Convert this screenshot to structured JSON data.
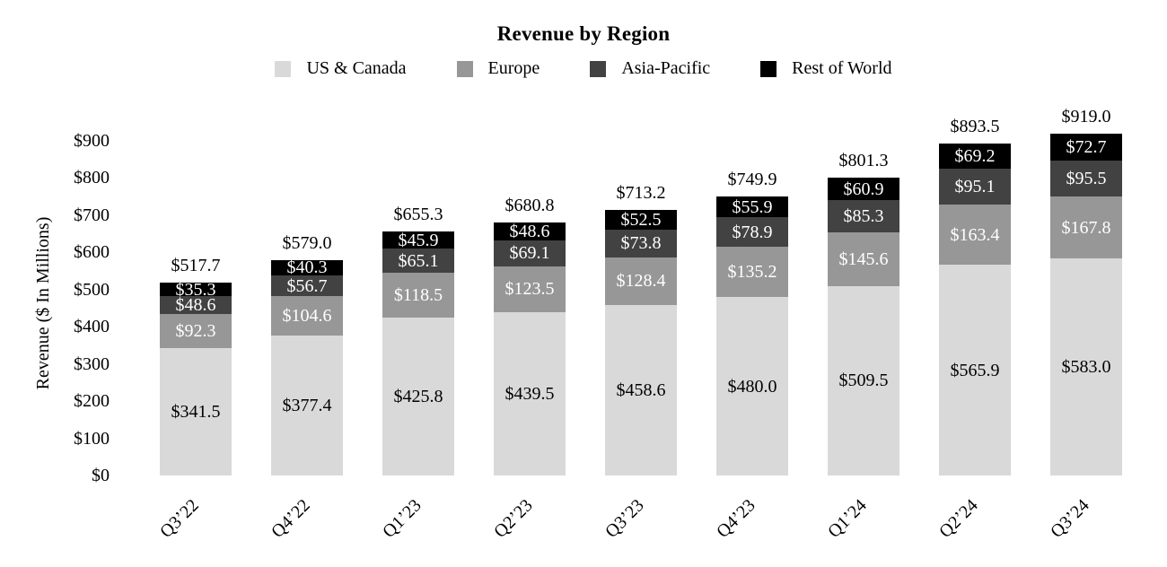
{
  "chart_data": {
    "type": "bar",
    "stacked": true,
    "title": "Revenue by Region",
    "ylabel": "Revenue ($ In Millions)",
    "xlabel": "",
    "ylim": [
      0,
      900
    ],
    "grid": false,
    "legend_position": "top",
    "value_prefix": "$",
    "y_ticks": [
      "$0",
      "$100",
      "$200",
      "$300",
      "$400",
      "$500",
      "$600",
      "$700",
      "$800",
      "$900"
    ],
    "categories": [
      "Q3’22",
      "Q4’22",
      "Q1’23",
      "Q2’23",
      "Q3’23",
      "Q4’23",
      "Q1’24",
      "Q2’24",
      "Q3’24"
    ],
    "series": [
      {
        "name": "US & Canada",
        "color": "#d9d9d9",
        "text_color": "#000000",
        "values": [
          341.5,
          377.4,
          425.8,
          439.5,
          458.6,
          480.0,
          509.5,
          565.9,
          583.0
        ]
      },
      {
        "name": "Europe",
        "color": "#979797",
        "text_color": "#ffffff",
        "values": [
          92.3,
          104.6,
          118.5,
          123.5,
          128.4,
          135.2,
          145.6,
          163.4,
          167.8
        ]
      },
      {
        "name": "Asia-Pacific",
        "color": "#424242",
        "text_color": "#ffffff",
        "values": [
          48.6,
          56.7,
          65.1,
          69.1,
          73.8,
          78.9,
          85.3,
          95.1,
          95.5
        ]
      },
      {
        "name": "Rest of World",
        "color": "#000000",
        "text_color": "#ffffff",
        "values": [
          35.3,
          40.3,
          45.9,
          48.6,
          52.5,
          55.9,
          60.9,
          69.2,
          72.7
        ]
      }
    ],
    "totals": [
      517.7,
      579.0,
      655.3,
      680.8,
      713.2,
      749.9,
      801.3,
      893.5,
      919.0
    ]
  }
}
